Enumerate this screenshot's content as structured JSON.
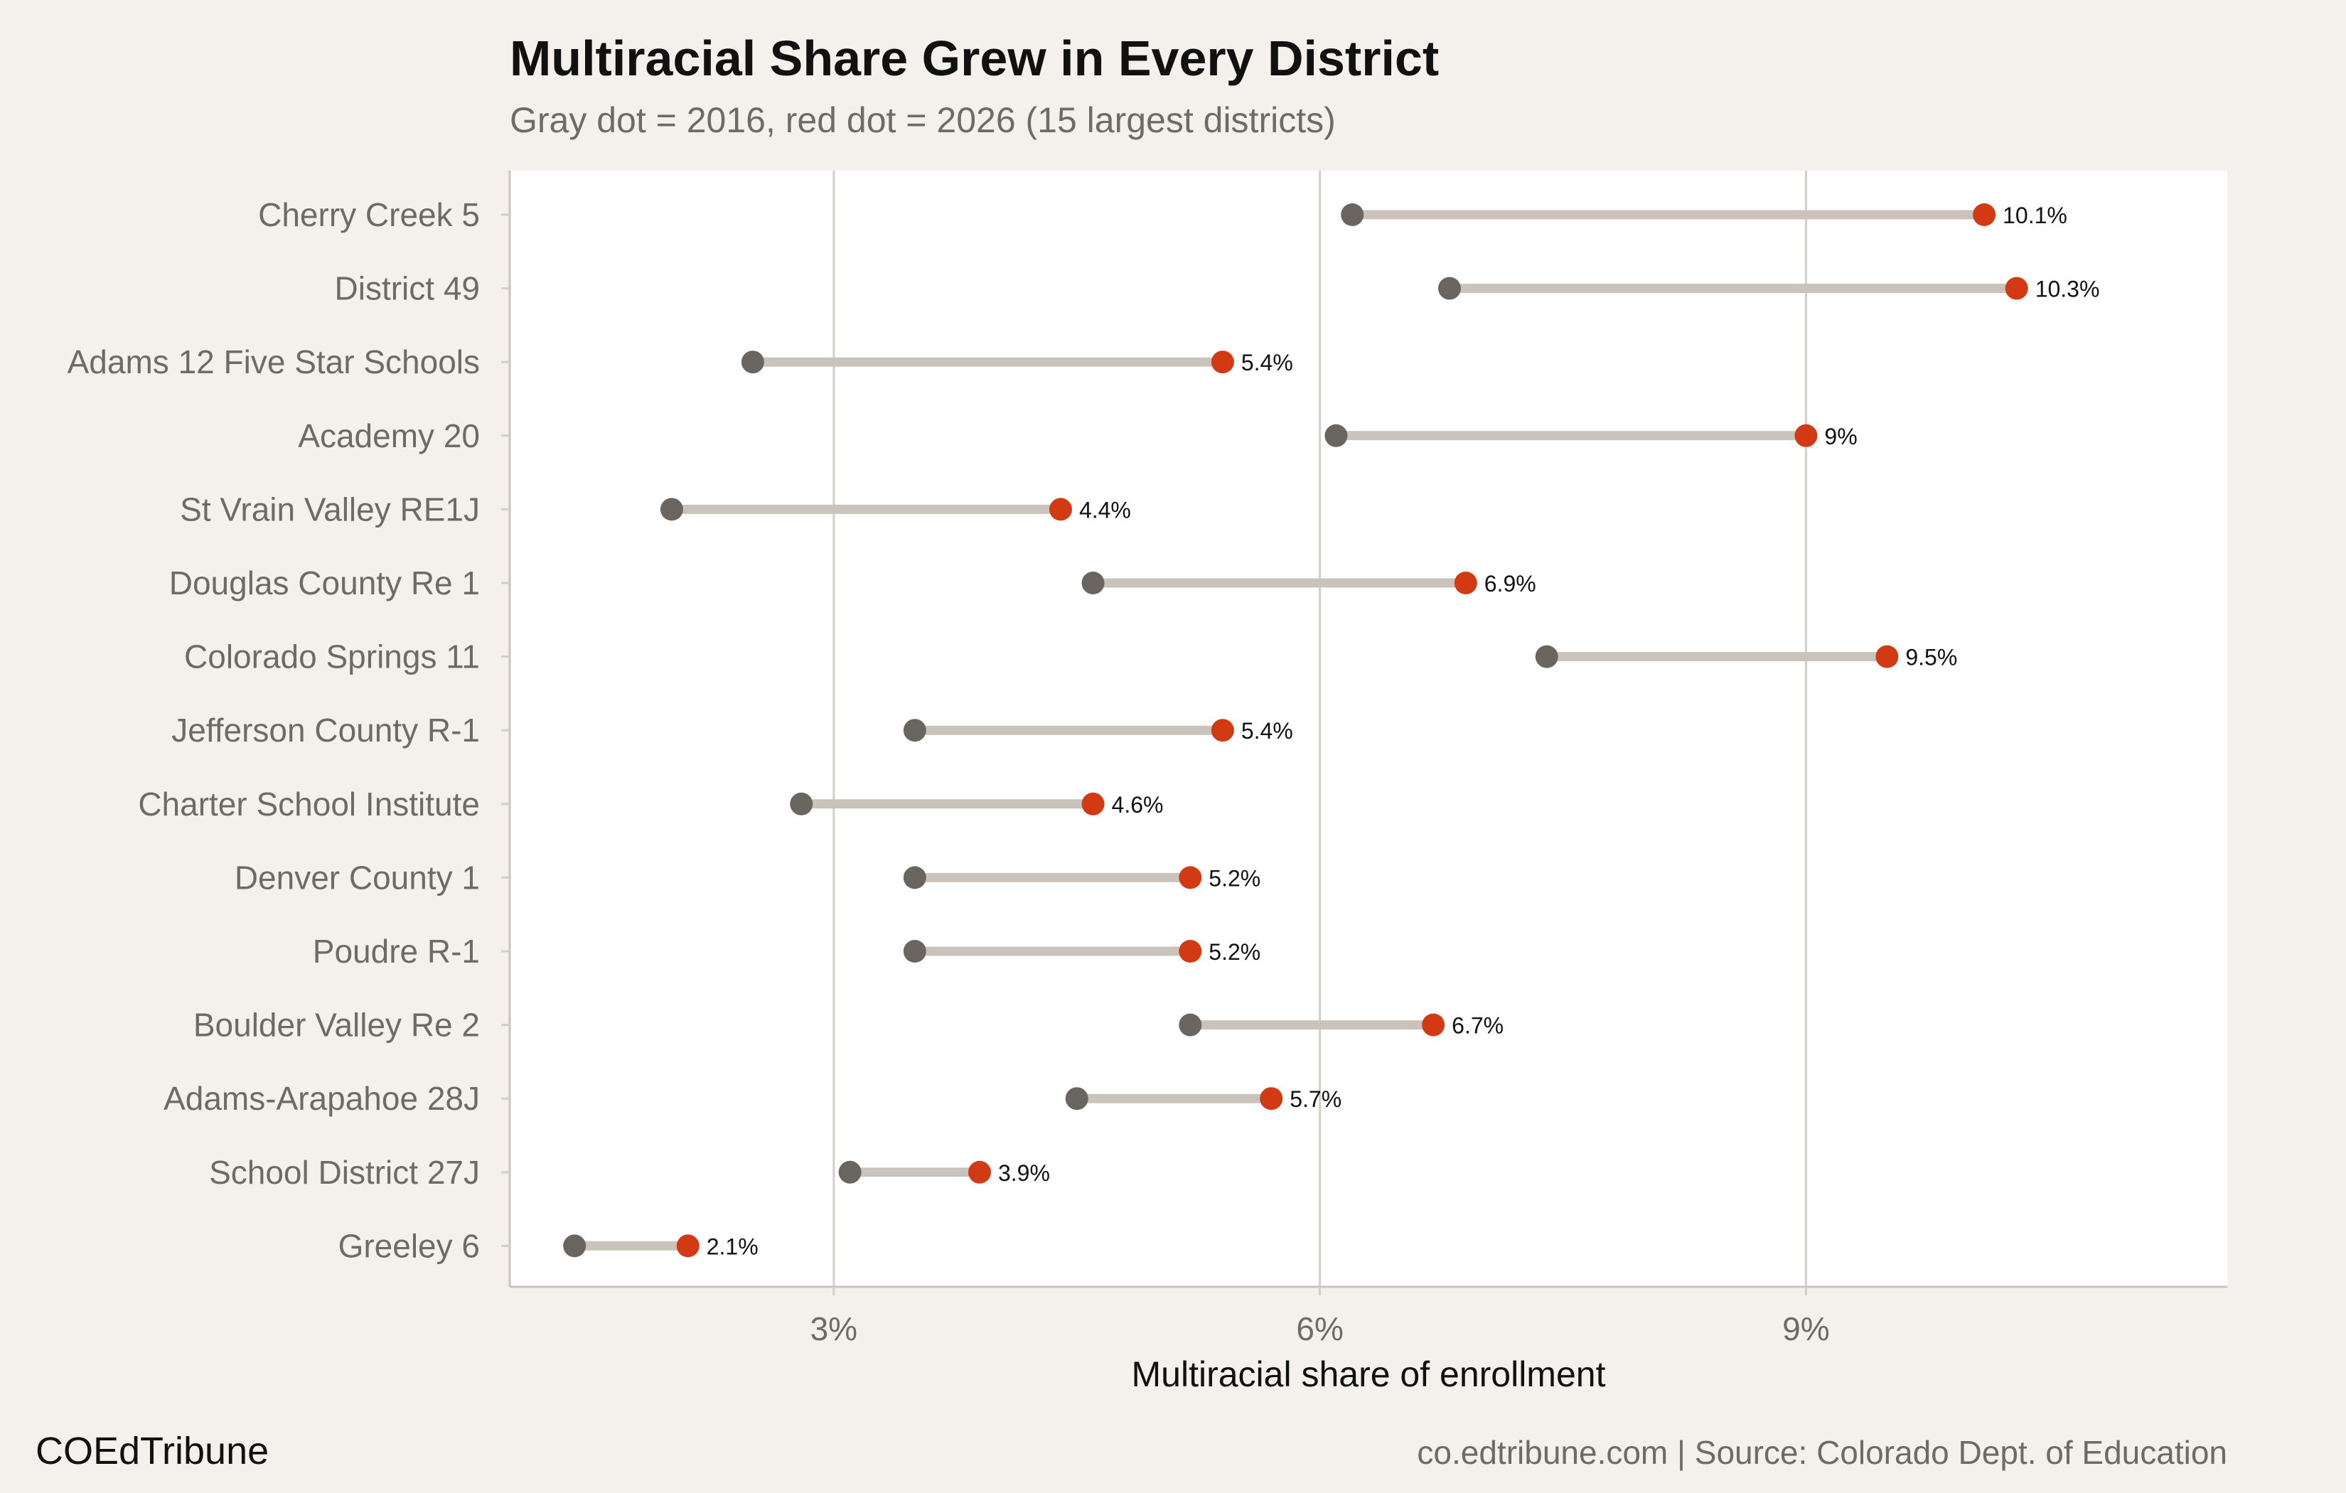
{
  "header": {
    "title": "Multiracial Share Grew in Every District",
    "subtitle": "Gray dot = 2016, red dot = 2026 (15 largest districts)"
  },
  "footer": {
    "brand": "COEdTribune",
    "source": "co.edtribune.com | Source: Colorado Dept. of Education"
  },
  "colors": {
    "background": "#f4f1ec",
    "panel": "#ffffff",
    "dot_2016": "#6b6560",
    "dot_2026": "#d13a12",
    "connector": "#c9c3bc",
    "gridline": "#d2cec8"
  },
  "chart_data": {
    "type": "dumbbell",
    "xlabel": "Multiracial share of enrollment",
    "ylabel": "",
    "xlim": [
      1.0,
      11.6
    ],
    "x_ticks": [
      3,
      6,
      9
    ],
    "x_tick_labels": [
      "3%",
      "6%",
      "9%"
    ],
    "grid": "vertical",
    "categories": [
      "Cherry Creek 5",
      "District 49",
      "Adams 12 Five Star Schools",
      "Academy 20",
      "St Vrain Valley RE1J",
      "Douglas County Re 1",
      "Colorado Springs 11",
      "Jefferson County R-1",
      "Charter School Institute",
      "Denver County 1",
      "Poudre R-1",
      "Boulder Valley Re 2",
      "Adams-Arapahoe 28J",
      "School District 27J",
      "Greeley 6"
    ],
    "values_2016": [
      6.2,
      6.8,
      2.5,
      6.1,
      2.0,
      4.6,
      7.4,
      3.5,
      2.8,
      3.5,
      3.5,
      5.2,
      4.5,
      3.1,
      1.4
    ],
    "values_2026": [
      10.1,
      10.3,
      5.4,
      9.0,
      4.4,
      6.9,
      9.5,
      5.4,
      4.6,
      5.2,
      5.2,
      6.7,
      5.7,
      3.9,
      2.1
    ],
    "value_labels": [
      "10.1%",
      "10.3%",
      "5.4%",
      "9%",
      "4.4%",
      "6.9%",
      "9.5%",
      "5.4%",
      "4.6%",
      "5.2%",
      "5.2%",
      "6.7%",
      "5.7%",
      "3.9%",
      "2.1%"
    ]
  }
}
